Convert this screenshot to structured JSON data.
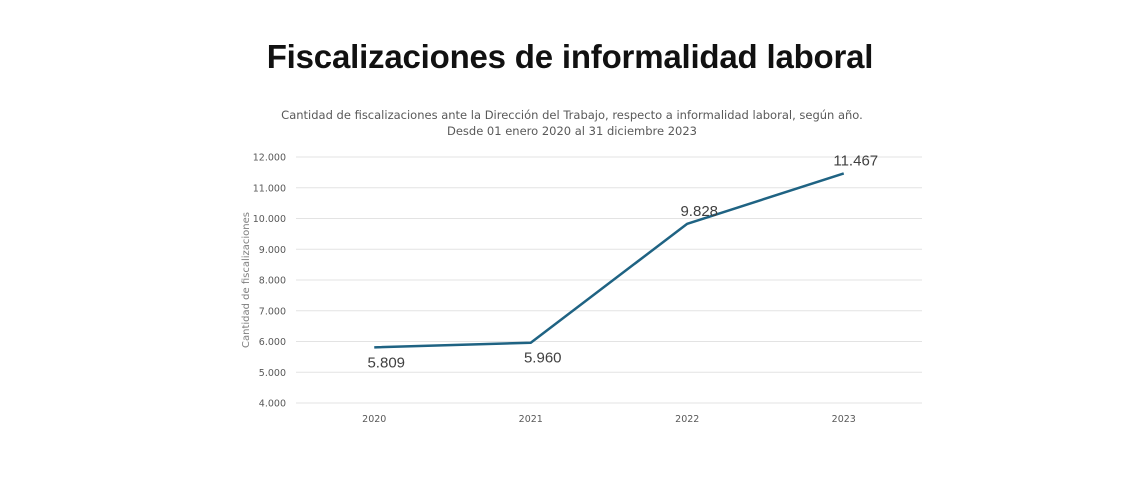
{
  "page": {
    "title": "Fiscalizaciones de informalidad laboral"
  },
  "chart_data": {
    "type": "line",
    "title": "Cantidad de fiscalizaciones ante la Dirección del Trabajo, respecto a informalidad laboral, según año.",
    "subtitle": "Desde 01 enero 2020 al 31 diciembre 2023",
    "xlabel": "",
    "ylabel": "Cantidad de fiscalizaciones",
    "categories": [
      "2020",
      "2021",
      "2022",
      "2023"
    ],
    "series": [
      {
        "name": "Fiscalizaciones",
        "values": [
          5809,
          5960,
          9828,
          11467
        ],
        "color": "#1f6383"
      }
    ],
    "data_labels": [
      "5.809",
      "5.960",
      "9.828",
      "11.467"
    ],
    "ylim": [
      4000,
      12000
    ],
    "yticks": [
      4000,
      5000,
      6000,
      7000,
      8000,
      9000,
      10000,
      11000,
      12000
    ],
    "ytick_labels": [
      "4.000",
      "5.000",
      "6.000",
      "7.000",
      "8.000",
      "9.000",
      "10.000",
      "11.000",
      "12.000"
    ],
    "grid": true,
    "legend": "none"
  }
}
